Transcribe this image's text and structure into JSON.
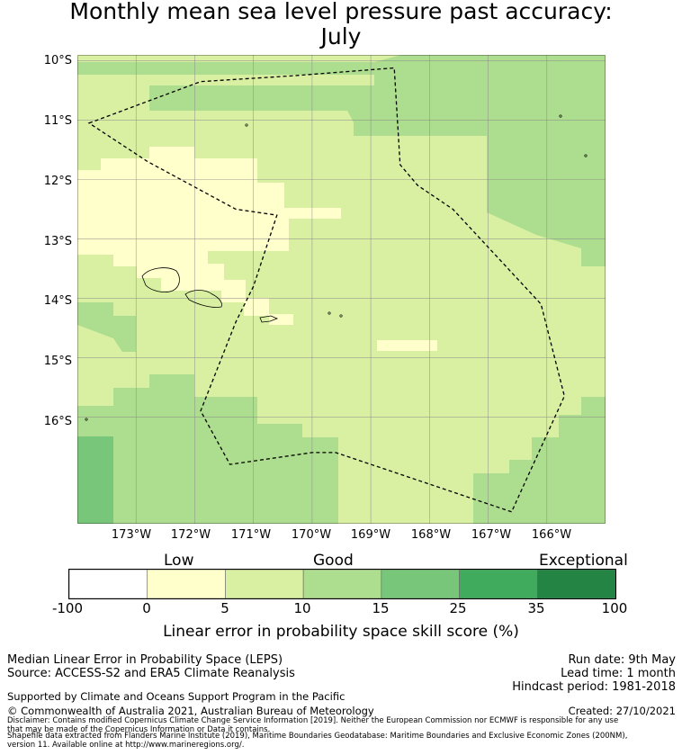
{
  "title_line1": "Monthly mean sea level pressure past accuracy:",
  "title_line2": "July",
  "map": {
    "lat_labels": [
      "10°S",
      "11°S",
      "12°S",
      "13°S",
      "14°S",
      "15°S",
      "16°S"
    ],
    "lon_labels": [
      "173°W",
      "172°W",
      "171°W",
      "170°W",
      "169°W",
      "168°W",
      "167°W",
      "166°W"
    ],
    "lon_range": [
      -174.0,
      -165.0
    ],
    "lat_range": [
      -17.8,
      -9.9
    ],
    "graticule_color": "#888888",
    "eez_style": "dashed",
    "eez_polygon": [
      [
        -173.8,
        -11.05
      ],
      [
        -171.9,
        -10.35
      ],
      [
        -170.3,
        -10.25
      ],
      [
        -168.6,
        -10.12
      ],
      [
        -168.5,
        -11.75
      ],
      [
        -168.2,
        -12.1
      ],
      [
        -167.6,
        -12.5
      ],
      [
        -166.1,
        -14.1
      ],
      [
        -165.7,
        -15.65
      ],
      [
        -166.6,
        -17.6
      ],
      [
        -168.7,
        -16.9
      ],
      [
        -169.6,
        -16.6
      ],
      [
        -170.0,
        -16.6
      ],
      [
        -171.4,
        -16.8
      ],
      [
        -171.9,
        -15.9
      ],
      [
        -171.3,
        -14.4
      ],
      [
        -171.0,
        -13.8
      ],
      [
        -170.6,
        -12.6
      ],
      [
        -171.3,
        -12.5
      ],
      [
        -172.8,
        -11.7
      ]
    ]
  },
  "colorbar": {
    "categories": [
      "Low",
      "Good",
      "Exceptional"
    ],
    "ticks": [
      "-100",
      "0",
      "5",
      "10",
      "15",
      "25",
      "35",
      "100"
    ],
    "colors": [
      "#ffffff",
      "#ffffcc",
      "#d9f0a3",
      "#addd8e",
      "#78c679",
      "#41ab5d",
      "#238443"
    ],
    "title": "Linear error in probability space skill score (%)"
  },
  "footer": {
    "method": "Median Linear Error in Probability Space (LEPS)",
    "source": "Source: ACCESS-S2 and ERA5 Climate Reanalysis",
    "run_date": "Run date: 9th May",
    "lead_time": "Lead time: 1 month",
    "hindcast": "Hindcast period: 1981-2018",
    "support": "Supported by Climate and Oceans Support Program in the Pacific",
    "copyright": "© Commonwealth of Australia 2021, Australian Bureau of Meteorology",
    "created": "Created: 27/10/2021",
    "disclaimer1": "Disclaimer: Contains modified Copernicus Climate Change Service Information [2019]. Neither the European Commission nor ECMWF is responsible for any use",
    "disclaimer2": "that may be made of the Copernicus Information or Data it contains.",
    "shapefile1": "Shapefile data extracted from Flanders Marine Institute (2019), Maritime Boundaries Geodatabase: Maritime Boundaries and Exclusive Economic Zones (200NM),",
    "shapefile2": "version 11. Available online at http://www.marineregions.org/."
  }
}
